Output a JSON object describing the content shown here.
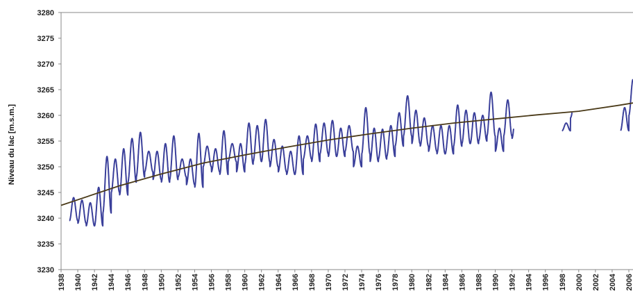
{
  "chart_data": {
    "type": "line",
    "title": "",
    "xlabel": "",
    "ylabel": "Niveau du lac [m.s.m.]",
    "xlim": [
      1938,
      2006.5
    ],
    "ylim": [
      3230,
      3280
    ],
    "yticks": [
      3230,
      3235,
      3240,
      3245,
      3250,
      3255,
      3260,
      3265,
      3270,
      3275,
      3280
    ],
    "xticks": [
      1938,
      1940,
      1942,
      1944,
      1946,
      1948,
      1950,
      1952,
      1954,
      1956,
      1958,
      1960,
      1962,
      1964,
      1966,
      1968,
      1970,
      1972,
      1974,
      1976,
      1978,
      1980,
      1982,
      1984,
      1986,
      1988,
      1990,
      1992,
      1994,
      1996,
      1998,
      2000,
      2002,
      2004,
      2006
    ],
    "grid": false,
    "legend": "none",
    "colors": {
      "observed": "#3a3f9a",
      "trend": "#4a3a18",
      "axis": "#888888"
    },
    "series": [
      {
        "style": "seasonal-oscillation",
        "segments": [
          [
            1939.0,
            1992.2
          ],
          [
            1998.0,
            1999.2
          ],
          [
            2004.8,
            2006.5
          ]
        ],
        "annual_max": [
          [
            1939,
            3244
          ],
          [
            1940,
            3243.5
          ],
          [
            1941,
            3243
          ],
          [
            1942,
            3246
          ],
          [
            1943,
            3252
          ],
          [
            1944,
            3251.5
          ],
          [
            1945,
            3253.5
          ],
          [
            1946,
            3255.5
          ],
          [
            1947,
            3256.7
          ],
          [
            1948,
            3253
          ],
          [
            1949,
            3253
          ],
          [
            1950,
            3254.5
          ],
          [
            1951,
            3256
          ],
          [
            1952,
            3251.5
          ],
          [
            1953,
            3251.5
          ],
          [
            1954,
            3256.5
          ],
          [
            1955,
            3254
          ],
          [
            1956,
            3253.5
          ],
          [
            1957,
            3257
          ],
          [
            1958,
            3254.5
          ],
          [
            1959,
            3254.5
          ],
          [
            1960,
            3258.5
          ],
          [
            1961,
            3258
          ],
          [
            1962,
            3259.2
          ],
          [
            1963,
            3255.3
          ],
          [
            1964,
            3254
          ],
          [
            1965,
            3253
          ],
          [
            1966,
            3256
          ],
          [
            1967,
            3256
          ],
          [
            1968,
            3258.3
          ],
          [
            1969,
            3258.5
          ],
          [
            1970,
            3259
          ],
          [
            1971,
            3257.5
          ],
          [
            1972,
            3258
          ],
          [
            1973,
            3254
          ],
          [
            1974,
            3261.5
          ],
          [
            1975,
            3257.5
          ],
          [
            1976,
            3257.3
          ],
          [
            1977,
            3258
          ],
          [
            1978,
            3260.5
          ],
          [
            1979,
            3263.8
          ],
          [
            1980,
            3261
          ],
          [
            1981,
            3259.5
          ],
          [
            1982,
            3258
          ],
          [
            1983,
            3258
          ],
          [
            1984,
            3258
          ],
          [
            1985,
            3262
          ],
          [
            1986,
            3261
          ],
          [
            1987,
            3260.5
          ],
          [
            1988,
            3260
          ],
          [
            1989,
            3264.5
          ],
          [
            1990,
            3257.5
          ],
          [
            1991,
            3263
          ],
          [
            1992,
            3261
          ],
          [
            1998,
            3258.5
          ],
          [
            1999,
            3262.5
          ],
          [
            2005,
            3261.5
          ],
          [
            2006,
            3267
          ]
        ],
        "annual_min": [
          [
            1939,
            3239.5
          ],
          [
            1940,
            3239
          ],
          [
            1941,
            3238.5
          ],
          [
            1942,
            3238.5
          ],
          [
            1943,
            3241
          ],
          [
            1944,
            3245
          ],
          [
            1945,
            3244.5
          ],
          [
            1946,
            3247
          ],
          [
            1947,
            3248
          ],
          [
            1948,
            3249
          ],
          [
            1949,
            3247.5
          ],
          [
            1950,
            3247
          ],
          [
            1951,
            3247.5
          ],
          [
            1952,
            3248
          ],
          [
            1953,
            3246.5
          ],
          [
            1954,
            3246
          ],
          [
            1955,
            3250
          ],
          [
            1956,
            3249
          ],
          [
            1957,
            3248.5
          ],
          [
            1958,
            3251
          ],
          [
            1959,
            3249
          ],
          [
            1960,
            3250.5
          ],
          [
            1961,
            3251
          ],
          [
            1962,
            3251
          ],
          [
            1963,
            3250
          ],
          [
            1964,
            3249
          ],
          [
            1965,
            3248.5
          ],
          [
            1966,
            3248.5
          ],
          [
            1967,
            3251.5
          ],
          [
            1968,
            3251
          ],
          [
            1969,
            3252.5
          ],
          [
            1970,
            3252
          ],
          [
            1971,
            3252
          ],
          [
            1972,
            3253
          ],
          [
            1973,
            3250
          ],
          [
            1974,
            3252.5
          ],
          [
            1975,
            3251
          ],
          [
            1976,
            3251.5
          ],
          [
            1977,
            3252
          ],
          [
            1978,
            3254
          ],
          [
            1979,
            3256
          ],
          [
            1980,
            3254.5
          ],
          [
            1981,
            3254
          ],
          [
            1982,
            3253
          ],
          [
            1983,
            3252.5
          ],
          [
            1984,
            3252.5
          ],
          [
            1985,
            3254
          ],
          [
            1986,
            3254.5
          ],
          [
            1987,
            3254.5
          ],
          [
            1988,
            3255
          ],
          [
            1989,
            3256
          ],
          [
            1990,
            3253
          ],
          [
            1991,
            3256
          ],
          [
            1992,
            3255.5
          ],
          [
            1998,
            3257
          ],
          [
            1999,
            3259.5
          ],
          [
            2005,
            3257
          ],
          [
            2006,
            3260
          ]
        ]
      },
      {
        "style": "trend",
        "points": [
          [
            1938,
            3242.5
          ],
          [
            1945,
            3246.3
          ],
          [
            1950,
            3248.6
          ],
          [
            1955,
            3250.7
          ],
          [
            1960,
            3252.3
          ],
          [
            1965,
            3253.8
          ],
          [
            1970,
            3255.2
          ],
          [
            1975,
            3256.4
          ],
          [
            1980,
            3257.5
          ],
          [
            1985,
            3258.5
          ],
          [
            1990,
            3259.3
          ],
          [
            1995,
            3260.1
          ],
          [
            2000,
            3260.8
          ],
          [
            2005,
            3262.0
          ],
          [
            2006.5,
            3262.4
          ]
        ]
      }
    ]
  }
}
